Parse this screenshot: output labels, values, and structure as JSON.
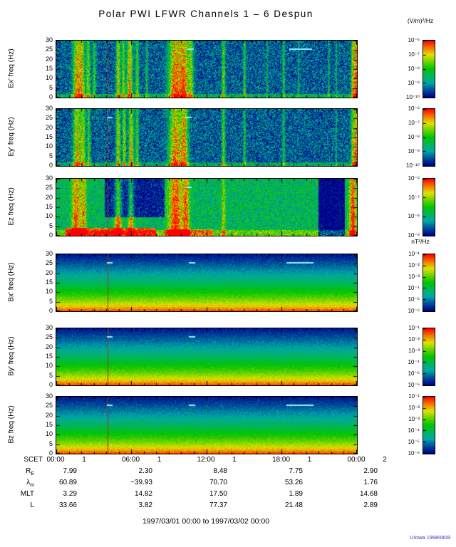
{
  "page": {
    "title": "Polar PWI LFWR Channels 1 – 6 Despun",
    "e_units": "(V/m)²/Hz",
    "b_units": "nT²/Hz",
    "footer": "1997/03/01 00:00 to 1997/03/02 00:00",
    "credit": "UIowa 19980808"
  },
  "chart_data": {
    "type": "heatmap",
    "title": "Polar PWI LFWR Channels 1 - 6 Despun",
    "time_range": "1997/03/01 00:00 to 1997/03/02 00:00",
    "marker_line_x": 0.17,
    "x_axis": {
      "name": "SCET",
      "major_labels": [
        "00:00",
        "06:00",
        "12:00",
        "18:00",
        "00:00"
      ],
      "day_labels": [
        "1",
        "1",
        "1",
        "1",
        "2"
      ],
      "hours_span": 24
    },
    "y_axis": {
      "ticks": [
        0,
        5,
        10,
        15,
        20,
        25,
        30
      ],
      "max": 30
    },
    "panels": [
      {
        "id": "ex",
        "ylabel": "Ex' freq (Hz)",
        "kind": "E",
        "cbar_exponents": [
          -6,
          -7,
          -8,
          -9,
          -10
        ],
        "render": {
          "seed": 11,
          "base": -9.8,
          "noise": 0.9,
          "bursts": [
            [
              0.068,
              0.01,
              3.4
            ],
            [
              0.085,
              0.006,
              2.6
            ],
            [
              0.105,
              0.005,
              2.4
            ],
            [
              0.125,
              0.004,
              1.8
            ],
            [
              0.205,
              0.005,
              3.0
            ],
            [
              0.222,
              0.004,
              2.6
            ],
            [
              0.243,
              0.007,
              3.4
            ],
            [
              0.268,
              0.004,
              2.2
            ],
            [
              0.3,
              0.003,
              1.4
            ],
            [
              0.395,
              0.016,
              3.8
            ],
            [
              0.425,
              0.01,
              3.4
            ],
            [
              0.447,
              0.006,
              2.4
            ],
            [
              0.555,
              0.004,
              2.4
            ],
            [
              0.625,
              0.003,
              1.8
            ],
            [
              0.7,
              0.002,
              1.2
            ],
            [
              0.755,
              0.003,
              1.6
            ],
            [
              0.805,
              0.002,
              1.2
            ],
            [
              0.905,
              0.002,
              1.4
            ],
            [
              0.93,
              0.002,
              1.2
            ],
            [
              0.985,
              0.004,
              2.6
            ],
            [
              0.997,
              0.006,
              4.2
            ]
          ],
          "low": [
            [
              0.0,
              1.0,
              2.0,
              1.2
            ]
          ],
          "dark": [],
          "dashes": [
            [
              0.435,
              0.022
            ],
            [
              0.775,
              0.075
            ]
          ]
        }
      },
      {
        "id": "ey",
        "ylabel": "Ey' freq (Hz)",
        "kind": "E",
        "cbar_exponents": [
          -6,
          -7,
          -8,
          -9,
          -10
        ],
        "render": {
          "seed": 22,
          "base": -9.8,
          "noise": 0.9,
          "bursts": [
            [
              0.068,
              0.009,
              3.2
            ],
            [
              0.088,
              0.006,
              2.6
            ],
            [
              0.107,
              0.004,
              2.0
            ],
            [
              0.205,
              0.005,
              3.0
            ],
            [
              0.225,
              0.004,
              2.8
            ],
            [
              0.248,
              0.006,
              3.2
            ],
            [
              0.268,
              0.004,
              2.0
            ],
            [
              0.395,
              0.015,
              3.6
            ],
            [
              0.425,
              0.009,
              3.2
            ],
            [
              0.555,
              0.004,
              2.2
            ],
            [
              0.625,
              0.003,
              1.6
            ],
            [
              0.755,
              0.003,
              1.4
            ],
            [
              0.93,
              0.002,
              1.2
            ],
            [
              0.985,
              0.004,
              2.4
            ],
            [
              0.997,
              0.006,
              4.0
            ]
          ],
          "low": [
            [
              0.0,
              1.0,
              2.0,
              1.1
            ]
          ],
          "dark": [],
          "dashes": [
            [
              0.168,
              0.018
            ],
            [
              0.428,
              0.022
            ]
          ]
        }
      },
      {
        "id": "ez",
        "ylabel": "Ez freq (Hz)",
        "kind": "E",
        "cbar_exponents": [
          -6,
          -7,
          -8,
          -9
        ],
        "render": {
          "seed": 33,
          "base": -8.9,
          "noise": 0.8,
          "bursts": [
            [
              0.065,
              0.01,
              2.8
            ],
            [
              0.09,
              0.006,
              2.4
            ],
            [
              0.205,
              0.008,
              3.0
            ],
            [
              0.247,
              0.006,
              2.6
            ],
            [
              0.395,
              0.016,
              3.2
            ],
            [
              0.43,
              0.008,
              2.8
            ],
            [
              0.555,
              0.004,
              1.8
            ],
            [
              0.985,
              0.008,
              3.4
            ]
          ],
          "low": [
            [
              0.0,
              1.0,
              3.0,
              1.3
            ],
            [
              0.03,
              0.33,
              4.5,
              3.0
            ],
            [
              0.36,
              0.52,
              3.5,
              1.6
            ]
          ],
          "dark": [
            [
              0.16,
              0.36,
              10,
              30,
              -1.7
            ],
            [
              0.87,
              0.958,
              0,
              30,
              -2.2
            ]
          ],
          "dashes": [
            [
              0.428,
              0.022
            ]
          ]
        }
      },
      {
        "id": "bx",
        "ylabel": "Bx' freq (Hz)",
        "kind": "B",
        "cbar_exponents": [
          -1,
          -2,
          -3,
          -4,
          -5,
          -6
        ],
        "render": {
          "seed": 44,
          "dashes": [
            [
              0.168,
              0.018
            ],
            [
              0.44,
              0.022
            ],
            [
              0.765,
              0.09
            ]
          ]
        }
      },
      {
        "id": "by",
        "ylabel": "By' freq (Hz)",
        "kind": "B",
        "cbar_exponents": [
          -1,
          -2,
          -3,
          -4,
          -5,
          -6
        ],
        "render": {
          "seed": 55,
          "dashes": [
            [
              0.168,
              0.018
            ],
            [
              0.44,
              0.022
            ]
          ]
        }
      },
      {
        "id": "bz",
        "ylabel": "Bz freq (Hz)",
        "kind": "B",
        "cbar_exponents": [
          -1,
          -2,
          -3,
          -4,
          -5,
          -6
        ],
        "render": {
          "seed": 66,
          "dashes": [
            [
              0.168,
              0.018
            ],
            [
              0.44,
              0.022
            ],
            [
              0.765,
              0.09
            ]
          ]
        }
      }
    ],
    "ephemeris": {
      "rows": [
        {
          "id": "re",
          "label": "R",
          "sub": "E",
          "values": [
            "7.99",
            "2.30",
            "8.48",
            "7.75",
            "2.90"
          ]
        },
        {
          "id": "lambda-m",
          "label": "λ",
          "sub": "m",
          "values": [
            "60.89",
            "−39.93",
            "70.70",
            "53.26",
            "1.76"
          ]
        },
        {
          "id": "mlt",
          "label": "MLT",
          "sub": "",
          "values": [
            "3.29",
            "14.82",
            "17.50",
            "1.89",
            "14.68"
          ]
        },
        {
          "id": "l",
          "label": "L",
          "sub": "",
          "values": [
            "33.66",
            "3.82",
            "77.37",
            "21.48",
            "2.89"
          ]
        }
      ]
    }
  }
}
